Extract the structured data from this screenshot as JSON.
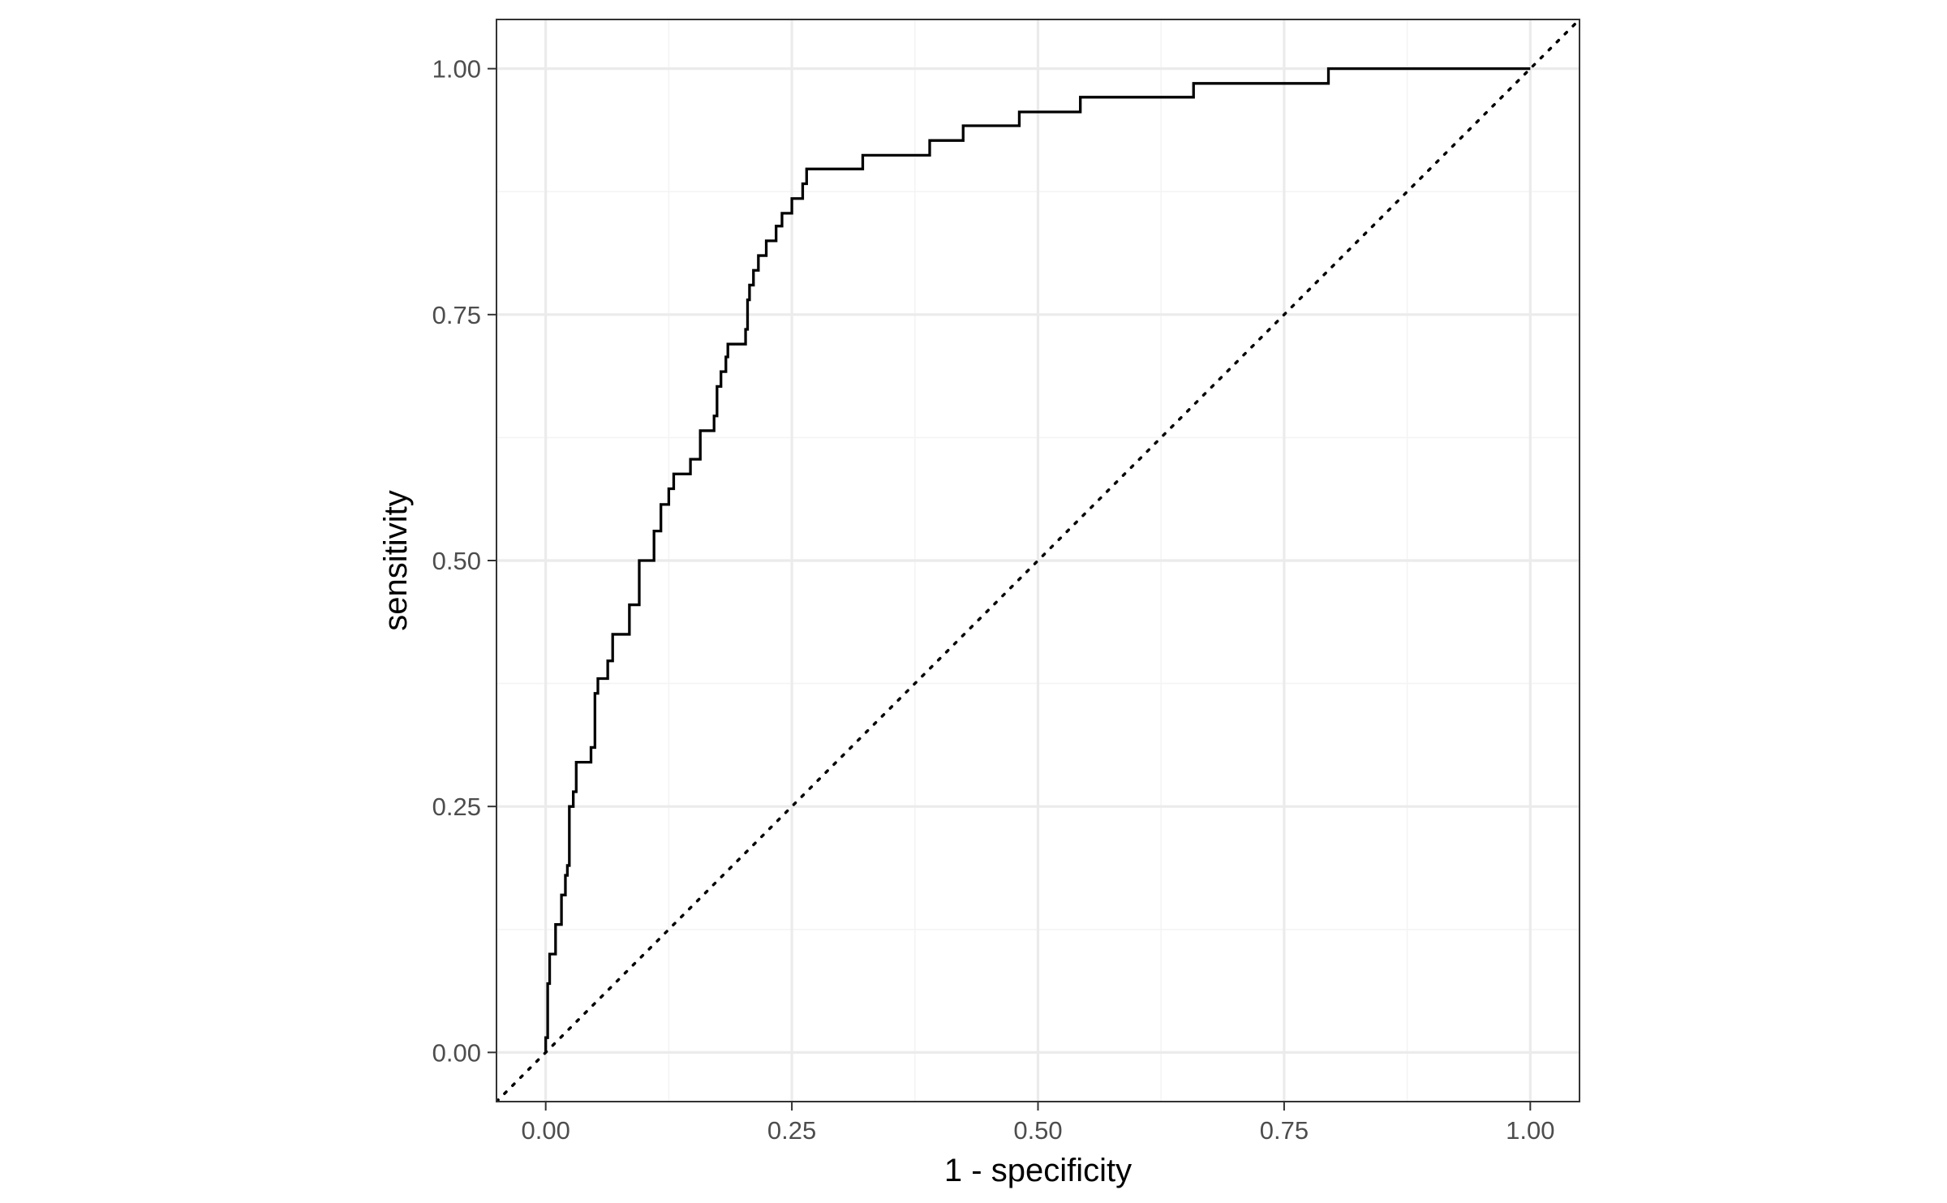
{
  "chart_data": {
    "type": "line",
    "title": "",
    "xlabel": "1 - specificity",
    "ylabel": "sensitivity",
    "xlim": [
      -0.05,
      1.05
    ],
    "ylim": [
      -0.05,
      1.05
    ],
    "x_ticks": [
      0,
      0.25,
      0.5,
      0.75,
      1
    ],
    "x_tick_labels": [
      "0.00",
      "0.25",
      "0.50",
      "0.75",
      "1.00"
    ],
    "y_ticks": [
      0,
      0.25,
      0.5,
      0.75,
      1
    ],
    "y_tick_labels": [
      "0.00",
      "0.25",
      "0.50",
      "0.75",
      "1.00"
    ],
    "grid": true,
    "legend": "none",
    "colors": {
      "curve": "#000000",
      "grid_major": "#ebebeb",
      "grid_minor": "#f4f4f4",
      "panel_border": "#333333"
    },
    "series": [
      {
        "kind": "step",
        "points": [
          [
            0,
            0
          ],
          [
            0,
            0.015
          ],
          [
            0.002,
            0.015
          ],
          [
            0.002,
            0.07
          ],
          [
            0.004,
            0.07
          ],
          [
            0.004,
            0.1
          ],
          [
            0.01,
            0.1
          ],
          [
            0.01,
            0.13
          ],
          [
            0.016,
            0.13
          ],
          [
            0.016,
            0.16
          ],
          [
            0.02,
            0.16
          ],
          [
            0.02,
            0.18
          ],
          [
            0.022,
            0.18
          ],
          [
            0.022,
            0.19
          ],
          [
            0.024,
            0.19
          ],
          [
            0.024,
            0.25
          ],
          [
            0.028,
            0.25
          ],
          [
            0.028,
            0.265
          ],
          [
            0.031,
            0.265
          ],
          [
            0.031,
            0.295
          ],
          [
            0.046,
            0.295
          ],
          [
            0.046,
            0.31
          ],
          [
            0.05,
            0.31
          ],
          [
            0.05,
            0.365
          ],
          [
            0.053,
            0.365
          ],
          [
            0.053,
            0.38
          ],
          [
            0.063,
            0.38
          ],
          [
            0.063,
            0.398
          ],
          [
            0.068,
            0.398
          ],
          [
            0.068,
            0.425
          ],
          [
            0.085,
            0.425
          ],
          [
            0.085,
            0.455
          ],
          [
            0.095,
            0.455
          ],
          [
            0.095,
            0.5
          ],
          [
            0.11,
            0.5
          ],
          [
            0.11,
            0.53
          ],
          [
            0.117,
            0.53
          ],
          [
            0.117,
            0.557
          ],
          [
            0.125,
            0.557
          ],
          [
            0.125,
            0.573
          ],
          [
            0.13,
            0.573
          ],
          [
            0.13,
            0.588
          ],
          [
            0.147,
            0.588
          ],
          [
            0.147,
            0.603
          ],
          [
            0.157,
            0.603
          ],
          [
            0.157,
            0.632
          ],
          [
            0.171,
            0.632
          ],
          [
            0.171,
            0.647
          ],
          [
            0.174,
            0.647
          ],
          [
            0.174,
            0.677
          ],
          [
            0.178,
            0.677
          ],
          [
            0.178,
            0.692
          ],
          [
            0.183,
            0.692
          ],
          [
            0.183,
            0.707
          ],
          [
            0.185,
            0.707
          ],
          [
            0.185,
            0.72
          ],
          [
            0.203,
            0.72
          ],
          [
            0.203,
            0.735
          ],
          [
            0.205,
            0.735
          ],
          [
            0.205,
            0.765
          ],
          [
            0.207,
            0.765
          ],
          [
            0.207,
            0.78
          ],
          [
            0.211,
            0.78
          ],
          [
            0.211,
            0.795
          ],
          [
            0.216,
            0.795
          ],
          [
            0.216,
            0.81
          ],
          [
            0.224,
            0.81
          ],
          [
            0.224,
            0.825
          ],
          [
            0.234,
            0.825
          ],
          [
            0.234,
            0.84
          ],
          [
            0.24,
            0.84
          ],
          [
            0.24,
            0.853
          ],
          [
            0.25,
            0.853
          ],
          [
            0.25,
            0.868
          ],
          [
            0.261,
            0.868
          ],
          [
            0.261,
            0.883
          ],
          [
            0.265,
            0.883
          ],
          [
            0.265,
            0.898
          ],
          [
            0.322,
            0.898
          ],
          [
            0.322,
            0.912
          ],
          [
            0.39,
            0.912
          ],
          [
            0.39,
            0.927
          ],
          [
            0.424,
            0.927
          ],
          [
            0.424,
            0.942
          ],
          [
            0.481,
            0.942
          ],
          [
            0.481,
            0.956
          ],
          [
            0.543,
            0.956
          ],
          [
            0.543,
            0.971
          ],
          [
            0.658,
            0.971
          ],
          [
            0.658,
            0.985
          ],
          [
            0.795,
            0.985
          ],
          [
            0.795,
            1.0
          ],
          [
            1.0,
            1.0
          ]
        ]
      },
      {
        "kind": "reference-diagonal",
        "points": [
          [
            -0.05,
            -0.05
          ],
          [
            1.05,
            1.05
          ]
        ]
      }
    ]
  }
}
